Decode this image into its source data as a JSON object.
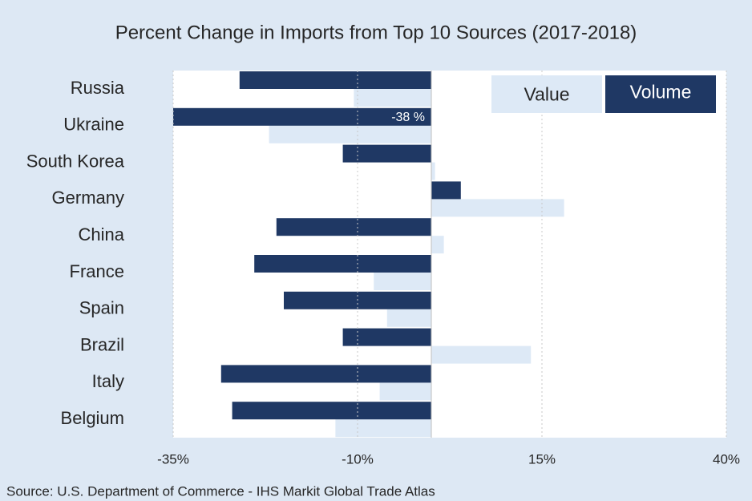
{
  "chart_data": {
    "type": "hbar",
    "title": "Percent Change in Imports from Top 10 Sources (2017-2018)",
    "source": "Source: U.S. Department of Commerce - IHS Markit Global Trade Atlas",
    "categories": [
      "Russia",
      "Ukraine",
      "South Korea",
      "Germany",
      "China",
      "France",
      "Spain",
      "Brazil",
      "Italy",
      "Belgium"
    ],
    "series": [
      {
        "name": "Value",
        "color": "#dde9f6",
        "values": [
          -10.5,
          -22,
          0.5,
          18,
          1.7,
          -7.8,
          -6,
          13.5,
          -7,
          -13
        ]
      },
      {
        "name": "Volume",
        "color": "#1f3864",
        "values": [
          -26,
          -38,
          -12,
          4,
          -21,
          -24,
          -20,
          -12,
          -28.5,
          -27
        ],
        "value_labels": [
          null,
          "-38 %",
          null,
          null,
          null,
          null,
          null,
          null,
          null,
          null
        ]
      }
    ],
    "xlim": [
      -35,
      40
    ],
    "xticks": [
      {
        "value": -35,
        "label": "-35%"
      },
      {
        "value": -10,
        "label": "-10%"
      },
      {
        "value": 15,
        "label": "15%"
      },
      {
        "value": 40,
        "label": "40%"
      }
    ],
    "grid": true,
    "legend": "upper right"
  }
}
